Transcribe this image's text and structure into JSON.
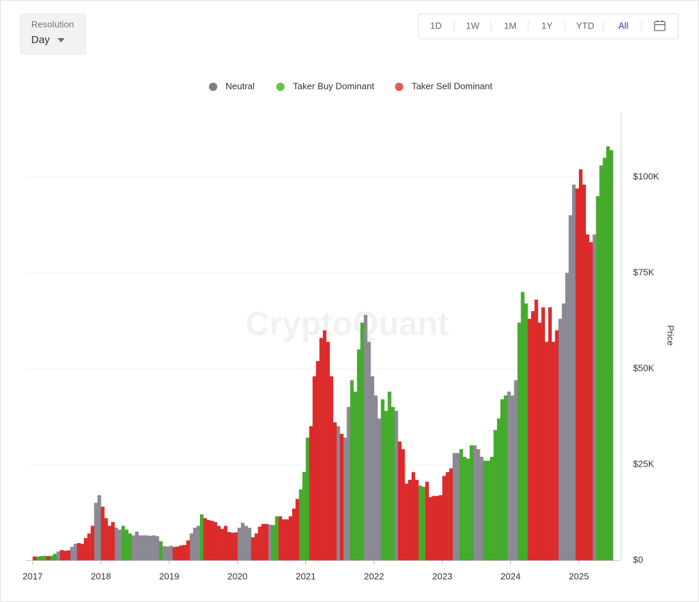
{
  "resolution": {
    "label": "Resolution",
    "value": "Day"
  },
  "ranges": [
    "1D",
    "1W",
    "1M",
    "1Y",
    "YTD",
    "All"
  ],
  "active_range": 5,
  "watermark": "CryptoQuant",
  "chart_data": {
    "type": "bar",
    "y_label": "Price",
    "xlim": [
      2017,
      2025.6
    ],
    "xticks": [
      2017,
      2018,
      2019,
      2020,
      2021,
      2022,
      2023,
      2024,
      2025
    ],
    "ylim": [
      0,
      117000
    ],
    "yticks": [
      {
        "value": 0,
        "label": "$0"
      },
      {
        "value": 25000,
        "label": "$25K"
      },
      {
        "value": 50000,
        "label": "$50K"
      },
      {
        "value": 75000,
        "label": "$75K"
      },
      {
        "value": 100000,
        "label": "$100K"
      }
    ],
    "grid": true,
    "legend": "top",
    "series": [
      {
        "name": "Neutral",
        "color": "#8b8994",
        "legend_color": "#7d7b85",
        "x": [
          2017.35,
          2017.55,
          2017.6,
          2017.9,
          2017.95,
          2018.2,
          2018.25,
          2018.45,
          2018.5,
          2018.55,
          2018.6,
          2018.65,
          2018.7,
          2018.75,
          2018.8,
          2018.9,
          2018.95,
          2019.0,
          2019.3,
          2019.35,
          2019.4,
          2020.0,
          2020.05,
          2020.1,
          2020.15,
          2020.45,
          2021.45,
          2021.55,
          2021.6,
          2021.85,
          2021.9,
          2021.95,
          2022.0,
          2022.05,
          2022.3,
          2023.15,
          2023.2,
          2023.45,
          2023.5,
          2023.55,
          2023.95,
          2024.0,
          2024.05,
          2024.7,
          2024.75,
          2024.8,
          2024.85,
          2024.9,
          2025.2
        ],
        "values": [
          2300,
          3500,
          4300,
          15000,
          17000,
          8500,
          8000,
          6500,
          7500,
          6500,
          6500,
          6500,
          6400,
          6500,
          6300,
          3700,
          3600,
          3800,
          7000,
          8500,
          9000,
          8500,
          9800,
          9000,
          8500,
          9300,
          35000,
          32000,
          40000,
          64000,
          57000,
          48000,
          43000,
          37000,
          39000,
          28000,
          28000,
          30000,
          29000,
          27000,
          44000,
          43000,
          47000,
          63000,
          67000,
          75000,
          90000,
          98000,
          85000
        ]
      },
      {
        "name": "Taker Buy Dominant",
        "color": "#45ab2c",
        "legend_color": "#6cc04a",
        "x": [
          2017.05,
          2017.1,
          2017.15,
          2017.25,
          2017.3,
          2018.3,
          2018.35,
          2018.4,
          2018.85,
          2019.45,
          2020.5,
          2020.55,
          2020.9,
          2020.95,
          2021.0,
          2021.65,
          2021.7,
          2021.75,
          2021.8,
          2022.1,
          2022.15,
          2022.2,
          2022.25,
          2022.65,
          2022.7,
          2023.25,
          2023.3,
          2023.35,
          2023.4,
          2023.6,
          2023.65,
          2023.7,
          2023.75,
          2023.8,
          2023.85,
          2023.9,
          2024.1,
          2024.15,
          2024.2,
          2025.25,
          2025.3,
          2025.35,
          2025.4,
          2025.45
        ],
        "values": [
          1000,
          1100,
          1200,
          1200,
          1700,
          9000,
          8000,
          7000,
          5000,
          12000,
          9200,
          11500,
          18500,
          23000,
          32000,
          47000,
          44000,
          55000,
          62000,
          42000,
          39000,
          44000,
          40000,
          19500,
          19200,
          29000,
          27000,
          26500,
          30000,
          26000,
          26000,
          27000,
          34000,
          37000,
          42000,
          43000,
          62000,
          70000,
          67000,
          95000,
          103000,
          105000,
          108000,
          107000
        ]
      },
      {
        "name": "Taker Sell Dominant",
        "color": "#dc2b2b",
        "legend_color": "#e05a5a",
        "x": [
          2017.0,
          2017.2,
          2017.4,
          2017.45,
          2017.5,
          2017.65,
          2017.7,
          2017.75,
          2017.8,
          2017.85,
          2018.0,
          2018.05,
          2018.1,
          2018.15,
          2019.05,
          2019.1,
          2019.15,
          2019.2,
          2019.25,
          2019.5,
          2019.55,
          2019.6,
          2019.65,
          2019.7,
          2019.75,
          2019.8,
          2019.85,
          2019.9,
          2019.95,
          2020.2,
          2020.25,
          2020.3,
          2020.35,
          2020.4,
          2020.6,
          2020.65,
          2020.7,
          2020.75,
          2020.8,
          2020.85,
          2021.05,
          2021.1,
          2021.15,
          2021.2,
          2021.25,
          2021.3,
          2021.35,
          2021.4,
          2021.5,
          2022.35,
          2022.4,
          2022.45,
          2022.5,
          2022.55,
          2022.6,
          2022.75,
          2022.8,
          2022.85,
          2022.9,
          2022.95,
          2023.0,
          2023.05,
          2023.1,
          2024.25,
          2024.3,
          2024.35,
          2024.4,
          2024.45,
          2024.5,
          2024.55,
          2024.6,
          2024.65,
          2024.95,
          2025.0,
          2025.05,
          2025.1,
          2025.15
        ],
        "values": [
          1000,
          1100,
          2700,
          2500,
          2600,
          4500,
          4300,
          5800,
          7000,
          9000,
          14000,
          11000,
          9000,
          10000,
          3500,
          3600,
          3900,
          4000,
          5200,
          11000,
          10500,
          10300,
          10000,
          9000,
          8200,
          9000,
          7400,
          7200,
          7300,
          6000,
          7000,
          8800,
          9500,
          9500,
          11500,
          10700,
          10700,
          11500,
          13500,
          16000,
          35000,
          48000,
          52000,
          58000,
          60000,
          57000,
          48000,
          36000,
          33000,
          31000,
          29000,
          20000,
          21000,
          23000,
          21000,
          20500,
          16500,
          16800,
          16800,
          17000,
          22000,
          23000,
          24000,
          63000,
          65000,
          68000,
          62000,
          66000,
          57000,
          66000,
          57000,
          60000,
          97000,
          102000,
          98000,
          85000,
          83000
        ]
      }
    ]
  }
}
